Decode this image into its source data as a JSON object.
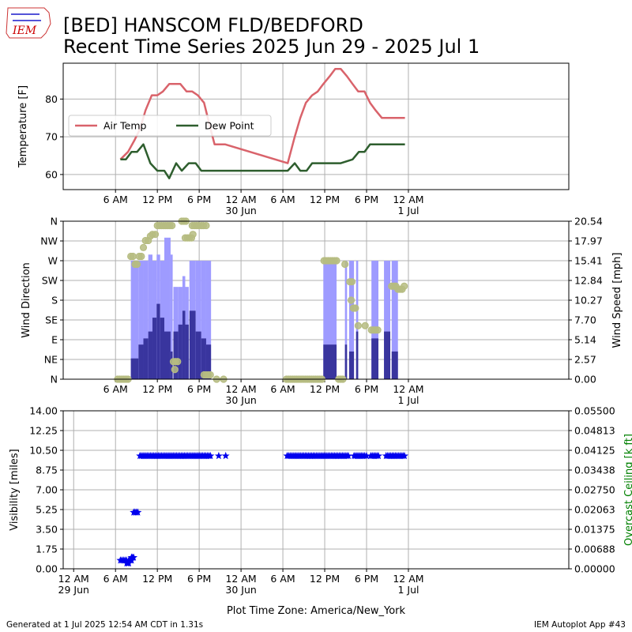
{
  "header": {
    "logo_text": "IEM",
    "title_line1": "[BED] HANSCOM FLD/BEDFORD",
    "title_line2": "Recent Time Series 2025 Jun 29 - 2025 Jul 1"
  },
  "footer": {
    "generated": "Generated at 1 Jul 2025 12:54 AM CDT in 1.31s",
    "app": "IEM Autoplot App #43",
    "timezone_label": "Plot Time Zone: America/New_York"
  },
  "colors": {
    "air_temp": "#d9636b",
    "dew_point": "#2e5e2e",
    "gust_bar": "#9e9bff",
    "speed_bar": "#39359e",
    "direction": "#b6bc81",
    "visibility": "#0000ee",
    "ceiling_axis": "#008000"
  },
  "chart_data": [
    {
      "type": "line",
      "ylabel": "Temperature [F]",
      "ylim": [
        56,
        89.5
      ],
      "yticks": [
        "60",
        "70",
        "80"
      ],
      "xlim_hours": [
        -1.5,
        71
      ],
      "grid": true,
      "legend_position": "upper-left",
      "xticks": [
        {
          "h": 6,
          "label": "6 AM",
          "sub": ""
        },
        {
          "h": 12,
          "label": "12 PM",
          "sub": ""
        },
        {
          "h": 18,
          "label": "6 PM",
          "sub": ""
        },
        {
          "h": 24,
          "label": "12 AM",
          "sub": "30 Jun"
        },
        {
          "h": 30,
          "label": "6 AM",
          "sub": ""
        },
        {
          "h": 36,
          "label": "12 PM",
          "sub": ""
        },
        {
          "h": 42,
          "label": "6 PM",
          "sub": ""
        },
        {
          "h": 48,
          "label": "12 AM",
          "sub": "1 Jul"
        }
      ],
      "series": [
        {
          "name": "Air Temp",
          "x": [
            6.7,
            7.8,
            8.7,
            9.5,
            10.3,
            11.2,
            12.0,
            12.8,
            13.7,
            14.5,
            15.3,
            16.2,
            17.0,
            17.8,
            18.7,
            19.5,
            20.2,
            21.7,
            30.7,
            31.7,
            32.5,
            33.3,
            34.2,
            35.0,
            35.8,
            36.7,
            37.5,
            38.3,
            39.2,
            40.0,
            40.8,
            41.7,
            42.5,
            43.3,
            44.2,
            45.0,
            45.8,
            46.7,
            47.5
          ],
          "y": [
            64,
            66,
            69,
            72,
            77,
            81,
            81,
            82,
            84,
            84,
            84,
            82,
            82,
            81,
            79,
            73,
            68,
            68,
            63,
            70,
            75,
            79,
            81,
            82,
            84,
            86,
            88,
            88,
            86,
            84,
            82,
            82,
            79,
            77,
            75,
            75,
            75,
            75,
            75
          ]
        },
        {
          "name": "Dew Point",
          "x": [
            6.7,
            7.5,
            8.3,
            9.1,
            10.0,
            11.0,
            12.0,
            13.0,
            13.7,
            14.7,
            15.5,
            16.5,
            17.5,
            18.3,
            20.0,
            30.7,
            31.7,
            32.5,
            33.4,
            34.2,
            35.0,
            36.7,
            38.3,
            40.0,
            40.9,
            41.7,
            42.5,
            43.4,
            44.2,
            45.0,
            45.9,
            46.7,
            47.5
          ],
          "y": [
            64,
            64,
            66,
            66,
            68,
            63,
            61,
            61,
            59,
            63,
            61,
            63,
            63,
            61,
            61,
            61,
            63,
            61,
            61,
            63,
            63,
            63,
            63,
            64,
            66,
            66,
            68,
            68,
            68,
            68,
            68,
            68,
            68
          ]
        }
      ]
    },
    {
      "type": "bar",
      "ylabel": "Wind Direction",
      "y2label": "Wind Speed [mph]",
      "ylim": [
        0,
        360
      ],
      "y2lim": [
        0,
        20.54
      ],
      "yticks": [
        "N",
        "NE",
        "E",
        "SE",
        "S",
        "SW",
        "W",
        "NW",
        "N"
      ],
      "y2ticks": [
        "0.00",
        "2.57",
        "5.14",
        "7.70",
        "10.27",
        "12.84",
        "15.41",
        "17.97",
        "20.54"
      ],
      "xlim_hours": [
        -1.5,
        71
      ],
      "grid": true,
      "xticks": [
        {
          "h": 6,
          "label": "6 AM",
          "sub": ""
        },
        {
          "h": 12,
          "label": "12 PM",
          "sub": ""
        },
        {
          "h": 18,
          "label": "6 PM",
          "sub": ""
        },
        {
          "h": 24,
          "label": "12 AM",
          "sub": "30 Jun"
        },
        {
          "h": 30,
          "label": "6 AM",
          "sub": ""
        },
        {
          "h": 36,
          "label": "12 PM",
          "sub": ""
        },
        {
          "h": 42,
          "label": "6 PM",
          "sub": ""
        },
        {
          "h": 48,
          "label": "12 AM",
          "sub": "1 Jul"
        }
      ],
      "bars": [
        {
          "x0": 8.2,
          "x1": 9.3,
          "speed": 2.7,
          "gust": 15.4
        },
        {
          "x0": 9.3,
          "x1": 10.0,
          "speed": 4.5,
          "gust": 15.4
        },
        {
          "x0": 10.0,
          "x1": 10.7,
          "speed": 5.3,
          "gust": 15.4
        },
        {
          "x0": 10.7,
          "x1": 11.3,
          "speed": 6.2,
          "gust": 16.2
        },
        {
          "x0": 11.3,
          "x1": 11.9,
          "speed": 8.0,
          "gust": 15.4
        },
        {
          "x0": 11.9,
          "x1": 12.4,
          "speed": 9.8,
          "gust": 16.2
        },
        {
          "x0": 12.4,
          "x1": 13.0,
          "speed": 8.0,
          "gust": 15.4
        },
        {
          "x0": 13.0,
          "x1": 13.9,
          "speed": 6.2,
          "gust": 18.4
        },
        {
          "x0": 13.9,
          "x1": 14.2,
          "speed": 3.6,
          "gust": 16.2
        },
        {
          "x0": 14.3,
          "x1": 15.0,
          "speed": 6.2,
          "gust": 12.0
        },
        {
          "x0": 15.0,
          "x1": 15.6,
          "speed": 7.1,
          "gust": 12.0
        },
        {
          "x0": 15.6,
          "x1": 16.0,
          "speed": 8.9,
          "gust": 13.4
        },
        {
          "x0": 16.0,
          "x1": 16.5,
          "speed": 7.1,
          "gust": 12.0
        },
        {
          "x0": 16.6,
          "x1": 17.5,
          "speed": 8.9,
          "gust": 15.4
        },
        {
          "x0": 17.5,
          "x1": 18.3,
          "speed": 6.2,
          "gust": 15.4
        },
        {
          "x0": 18.3,
          "x1": 19.0,
          "speed": 5.3,
          "gust": 15.4
        },
        {
          "x0": 19.0,
          "x1": 19.7,
          "speed": 4.5,
          "gust": 15.4
        },
        {
          "x0": 35.8,
          "x1": 37.7,
          "speed": 4.5,
          "gust": 15.4
        },
        {
          "x0": 38.9,
          "x1": 39.2,
          "speed": 4.5,
          "gust": 15.4
        },
        {
          "x0": 39.5,
          "x1": 40.2,
          "speed": 3.6,
          "gust": 15.4
        },
        {
          "x0": 40.5,
          "x1": 40.8,
          "speed": 6.2,
          "gust": 15.4
        },
        {
          "x0": 42.7,
          "x1": 43.7,
          "speed": 5.3,
          "gust": 15.4
        },
        {
          "x0": 44.5,
          "x1": 45.4,
          "speed": 6.2,
          "gust": 15.4
        },
        {
          "x0": 45.6,
          "x1": 46.5,
          "speed": 3.6,
          "gust": 15.4
        }
      ],
      "direction_points": [
        {
          "x": 6.3,
          "y": 0
        },
        {
          "x": 6.6,
          "y": 0
        },
        {
          "x": 6.9,
          "y": 0
        },
        {
          "x": 7.2,
          "y": 0
        },
        {
          "x": 7.5,
          "y": 0
        },
        {
          "x": 7.8,
          "y": 0
        },
        {
          "x": 8.2,
          "y": 280
        },
        {
          "x": 8.5,
          "y": 280
        },
        {
          "x": 8.8,
          "y": 262
        },
        {
          "x": 9.1,
          "y": 262
        },
        {
          "x": 9.4,
          "y": 280
        },
        {
          "x": 9.7,
          "y": 280
        },
        {
          "x": 10.0,
          "y": 300
        },
        {
          "x": 10.3,
          "y": 316
        },
        {
          "x": 10.7,
          "y": 316
        },
        {
          "x": 11.0,
          "y": 326
        },
        {
          "x": 11.3,
          "y": 330
        },
        {
          "x": 11.7,
          "y": 330
        },
        {
          "x": 12.0,
          "y": 350
        },
        {
          "x": 12.3,
          "y": 350
        },
        {
          "x": 12.6,
          "y": 350
        },
        {
          "x": 12.9,
          "y": 350
        },
        {
          "x": 13.2,
          "y": 350
        },
        {
          "x": 13.5,
          "y": 350
        },
        {
          "x": 13.8,
          "y": 350
        },
        {
          "x": 14.1,
          "y": 350
        },
        {
          "x": 14.3,
          "y": 40
        },
        {
          "x": 14.6,
          "y": 40
        },
        {
          "x": 14.9,
          "y": 40
        },
        {
          "x": 14.5,
          "y": 22
        },
        {
          "x": 15.5,
          "y": 360
        },
        {
          "x": 15.8,
          "y": 360
        },
        {
          "x": 16.1,
          "y": 360
        },
        {
          "x": 16.0,
          "y": 322
        },
        {
          "x": 16.3,
          "y": 322
        },
        {
          "x": 16.6,
          "y": 322
        },
        {
          "x": 16.9,
          "y": 322
        },
        {
          "x": 17.1,
          "y": 330
        },
        {
          "x": 17.0,
          "y": 350
        },
        {
          "x": 17.3,
          "y": 350
        },
        {
          "x": 17.6,
          "y": 350
        },
        {
          "x": 17.9,
          "y": 350
        },
        {
          "x": 18.3,
          "y": 350
        },
        {
          "x": 18.6,
          "y": 350
        },
        {
          "x": 19.0,
          "y": 350
        },
        {
          "x": 18.7,
          "y": 10
        },
        {
          "x": 19.0,
          "y": 10
        },
        {
          "x": 19.3,
          "y": 10
        },
        {
          "x": 19.6,
          "y": 10
        },
        {
          "x": 20.5,
          "y": 0
        },
        {
          "x": 21.5,
          "y": 0
        },
        {
          "x": 30.5,
          "y": 0
        },
        {
          "x": 30.8,
          "y": 0
        },
        {
          "x": 31.1,
          "y": 0
        },
        {
          "x": 31.4,
          "y": 0
        },
        {
          "x": 31.7,
          "y": 0
        },
        {
          "x": 32.0,
          "y": 0
        },
        {
          "x": 32.3,
          "y": 0
        },
        {
          "x": 32.6,
          "y": 0
        },
        {
          "x": 32.9,
          "y": 0
        },
        {
          "x": 33.2,
          "y": 0
        },
        {
          "x": 33.5,
          "y": 0
        },
        {
          "x": 33.8,
          "y": 0
        },
        {
          "x": 34.1,
          "y": 0
        },
        {
          "x": 34.4,
          "y": 0
        },
        {
          "x": 34.7,
          "y": 0
        },
        {
          "x": 35.0,
          "y": 0
        },
        {
          "x": 35.3,
          "y": 0
        },
        {
          "x": 35.6,
          "y": 0
        },
        {
          "x": 35.9,
          "y": 270
        },
        {
          "x": 36.2,
          "y": 270
        },
        {
          "x": 36.5,
          "y": 270
        },
        {
          "x": 36.8,
          "y": 270
        },
        {
          "x": 37.1,
          "y": 270
        },
        {
          "x": 37.4,
          "y": 270
        },
        {
          "x": 37.7,
          "y": 270
        },
        {
          "x": 38.0,
          "y": 0
        },
        {
          "x": 38.3,
          "y": 0
        },
        {
          "x": 38.6,
          "y": 0
        },
        {
          "x": 38.9,
          "y": 262
        },
        {
          "x": 39.6,
          "y": 222
        },
        {
          "x": 39.9,
          "y": 222
        },
        {
          "x": 39.8,
          "y": 180
        },
        {
          "x": 40.1,
          "y": 162
        },
        {
          "x": 40.4,
          "y": 162
        },
        {
          "x": 40.8,
          "y": 122
        },
        {
          "x": 41.8,
          "y": 122
        },
        {
          "x": 42.7,
          "y": 112
        },
        {
          "x": 43.0,
          "y": 112
        },
        {
          "x": 43.3,
          "y": 112
        },
        {
          "x": 43.6,
          "y": 112
        },
        {
          "x": 45.6,
          "y": 212
        },
        {
          "x": 45.9,
          "y": 212
        },
        {
          "x": 46.2,
          "y": 212
        },
        {
          "x": 46.5,
          "y": 205
        },
        {
          "x": 46.8,
          "y": 205
        },
        {
          "x": 47.1,
          "y": 205
        },
        {
          "x": 47.4,
          "y": 212
        }
      ]
    },
    {
      "type": "scatter",
      "ylabel": "Visibility [miles]",
      "y2label": "Overcast Ceiling [k ft]",
      "ylim": [
        0,
        14
      ],
      "y2lim": [
        0,
        0.055
      ],
      "yticks": [
        "0.00",
        "1.75",
        "3.50",
        "5.25",
        "7.00",
        "8.75",
        "10.50",
        "12.25",
        "14.00"
      ],
      "y2ticks": [
        "0.00000",
        "0.00688",
        "0.01375",
        "0.02063",
        "0.02750",
        "0.03438",
        "0.04125",
        "0.04813",
        "0.05500"
      ],
      "xlim_hours": [
        -1.5,
        71
      ],
      "grid": true,
      "xticks": [
        {
          "h": 0,
          "label": "12 AM",
          "sub": "29 Jun"
        },
        {
          "h": 6,
          "label": "6 AM",
          "sub": ""
        },
        {
          "h": 12,
          "label": "12 PM",
          "sub": ""
        },
        {
          "h": 18,
          "label": "6 PM",
          "sub": ""
        },
        {
          "h": 24,
          "label": "12 AM",
          "sub": "30 Jun"
        },
        {
          "h": 30,
          "label": "6 AM",
          "sub": ""
        },
        {
          "h": 36,
          "label": "12 PM",
          "sub": ""
        },
        {
          "h": 42,
          "label": "6 PM",
          "sub": ""
        },
        {
          "h": 48,
          "label": "12 AM",
          "sub": "1 Jul"
        }
      ],
      "visibility_runs": [
        {
          "x0": 6.7,
          "x1": 7.6,
          "y": 0.75,
          "step": 0.22
        },
        {
          "x0": 7.6,
          "x1": 7.9,
          "y": 0.5,
          "step": 0.15
        },
        {
          "x0": 7.9,
          "x1": 8.3,
          "y": 0.75,
          "step": 0.2
        },
        {
          "x0": 8.3,
          "x1": 8.6,
          "y": 1.0,
          "step": 0.15
        },
        {
          "x0": 8.6,
          "x1": 9.3,
          "y": 5.0,
          "step": 0.2
        },
        {
          "x0": 9.5,
          "x1": 19.8,
          "y": 10.0,
          "step": 0.22
        },
        {
          "x0": 20.8,
          "x1": 20.8,
          "y": 10.0,
          "step": 1
        },
        {
          "x0": 21.8,
          "x1": 21.8,
          "y": 10.0,
          "step": 1
        },
        {
          "x0": 30.6,
          "x1": 39.4,
          "y": 10.0,
          "step": 0.22
        },
        {
          "x0": 40.2,
          "x1": 41.8,
          "y": 10.0,
          "step": 0.22
        },
        {
          "x0": 42.0,
          "x1": 42.0,
          "y": 10.0,
          "step": 1
        },
        {
          "x0": 42.6,
          "x1": 43.8,
          "y": 10.0,
          "step": 0.22
        },
        {
          "x0": 44.8,
          "x1": 47.5,
          "y": 10.0,
          "step": 0.22
        }
      ]
    }
  ]
}
